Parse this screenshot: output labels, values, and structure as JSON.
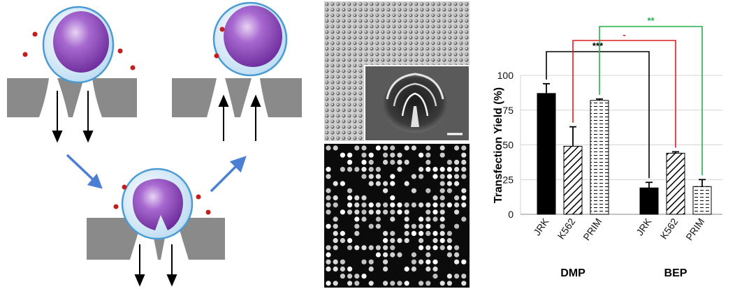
{
  "panels": {
    "schematic": {
      "icons": [
        "cell-icon",
        "cargo-dot-icon",
        "membrane-icon",
        "flow-arrow-icon"
      ]
    },
    "micrographs": {
      "icons": [
        "micropillar-array-image",
        "single-nozzle-sem-image",
        "fluorescence-grid-image"
      ]
    }
  },
  "colors": {
    "membrane": "#8a8a8a",
    "cell_edge": "#4a9bd4",
    "nucleus": "#8a3fb5",
    "cargo": "#c41e1e",
    "flow_arrow": "#4a7fd4",
    "sig_black": "#000000",
    "sig_red": "#e31b1b",
    "sig_green": "#22b14c"
  },
  "chart_data": {
    "type": "bar",
    "ylabel": "Transfection Yield (%)",
    "ylim": [
      0,
      100
    ],
    "yticks": [
      "0",
      "25",
      "50",
      "75",
      "100"
    ],
    "grid": true,
    "groups": [
      {
        "name": "DMP",
        "categories": [
          "JRK",
          "K562",
          "PRIM"
        ],
        "values": [
          87,
          49,
          82
        ],
        "errors": [
          7,
          14,
          1
        ]
      },
      {
        "name": "BEP",
        "categories": [
          "JRK",
          "K562",
          "PRIM"
        ],
        "values": [
          19,
          44,
          20
        ],
        "errors": [
          4,
          1,
          5
        ]
      }
    ],
    "patterns": [
      "solid",
      "hatched",
      "dashed"
    ],
    "significance": [
      {
        "label": "***",
        "from": "DMP JRK",
        "to": "BEP JRK",
        "color": "#000000"
      },
      {
        "label": "-",
        "from": "DMP K562",
        "to": "BEP K562",
        "color": "#e31b1b"
      },
      {
        "label": "**",
        "from": "DMP PRIM",
        "to": "BEP PRIM",
        "color": "#22b14c"
      }
    ]
  }
}
